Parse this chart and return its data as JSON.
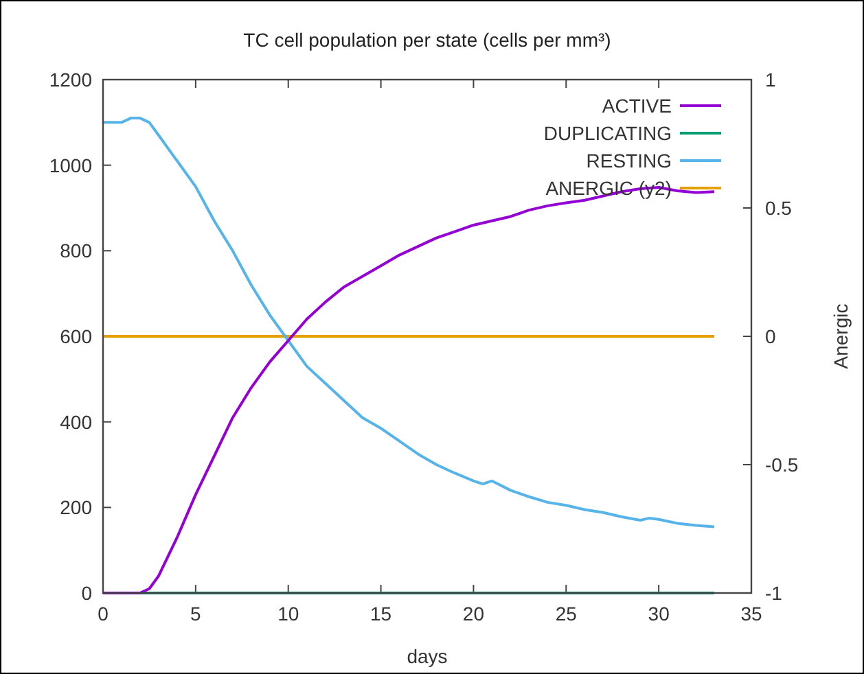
{
  "chart_data": {
    "type": "line",
    "title": "TC cell population per state (cells per mm³)",
    "xlabel": "days",
    "y2label": "Anergic",
    "xlim": [
      0,
      35
    ],
    "xticks": [
      0,
      5,
      10,
      15,
      20,
      25,
      30,
      35
    ],
    "ylim": [
      0,
      1200
    ],
    "yticks": [
      0,
      200,
      400,
      600,
      800,
      1000,
      1200
    ],
    "y2lim": [
      -1,
      1
    ],
    "y2ticks": [
      -1,
      -0.5,
      0,
      0.5,
      1
    ],
    "legend": "top right",
    "grid": false,
    "marker": "none",
    "line_style": "solid",
    "series": [
      {
        "name": "ACTIVE",
        "color": "#9400d3",
        "x": [
          0,
          2,
          2.5,
          3,
          4,
          5,
          6,
          7,
          8,
          9,
          10,
          11,
          12,
          13,
          14,
          15,
          16,
          17,
          18,
          19,
          20,
          21,
          22,
          23,
          24,
          25,
          26,
          27,
          28,
          29,
          30,
          31,
          32,
          33
        ],
        "values": [
          0,
          0,
          10,
          40,
          130,
          230,
          320,
          410,
          480,
          540,
          590,
          640,
          680,
          715,
          740,
          765,
          790,
          810,
          830,
          845,
          860,
          870,
          880,
          895,
          905,
          912,
          918,
          928,
          938,
          945,
          948,
          940,
          936,
          938
        ]
      },
      {
        "name": "DUPLICATING",
        "color": "#009e73",
        "x": [
          0,
          33
        ],
        "values": [
          0,
          0
        ]
      },
      {
        "name": "RESTING",
        "color": "#56b4e9",
        "x": [
          0,
          1,
          1.5,
          2,
          2.5,
          3,
          4,
          5,
          6,
          7,
          8,
          9,
          10,
          11,
          12,
          13,
          14,
          15,
          16,
          17,
          18,
          19,
          20,
          20.5,
          21,
          22,
          23,
          24,
          25,
          26,
          27,
          28,
          29,
          29.5,
          30,
          31,
          32,
          33
        ],
        "values": [
          1100,
          1100,
          1110,
          1110,
          1100,
          1070,
          1010,
          950,
          870,
          800,
          720,
          650,
          590,
          530,
          490,
          450,
          410,
          385,
          355,
          325,
          300,
          280,
          262,
          255,
          262,
          240,
          225,
          212,
          205,
          195,
          188,
          178,
          170,
          175,
          172,
          163,
          158,
          155
        ]
      },
      {
        "name": "ANERGIC (y2)",
        "color": "#e69f00",
        "axis": "y2",
        "x": [
          0,
          33
        ],
        "values": [
          0,
          0
        ]
      }
    ]
  }
}
